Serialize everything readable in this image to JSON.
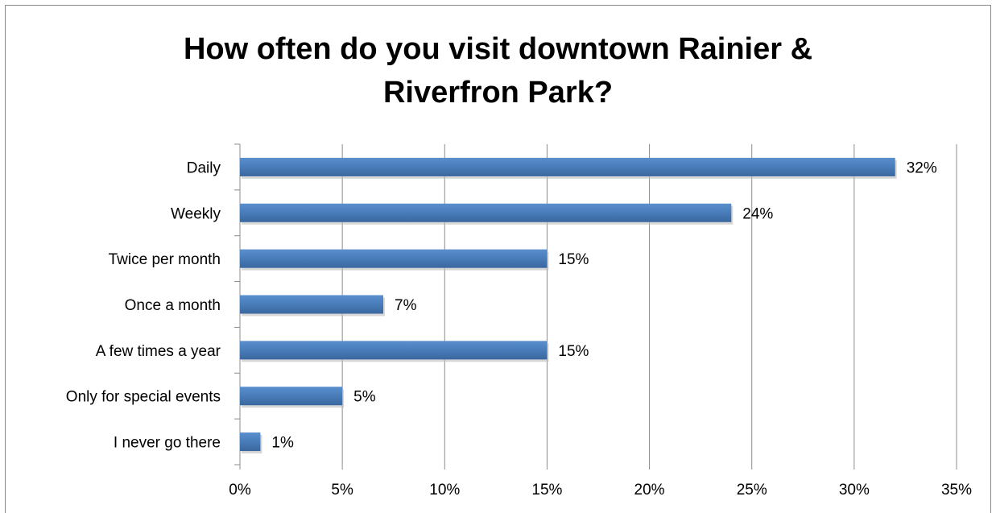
{
  "chart_data": {
    "type": "bar",
    "orientation": "horizontal",
    "title": "How often do you visit downtown Rainier & Riverfron Park?",
    "categories": [
      "Daily",
      "Weekly",
      "Twice per month",
      "Once a month",
      "A few times a year",
      "Only for special events",
      "I never go there"
    ],
    "values": [
      32,
      24,
      15,
      7,
      15,
      5,
      1
    ],
    "data_labels": [
      "32%",
      "24%",
      "15%",
      "7%",
      "15%",
      "5%",
      "1%"
    ],
    "xlim": [
      0,
      35
    ],
    "x_ticks": [
      0,
      5,
      10,
      15,
      20,
      25,
      30,
      35
    ],
    "x_tick_labels": [
      "0%",
      "5%",
      "10%",
      "15%",
      "20%",
      "25%",
      "30%",
      "35%"
    ],
    "grid": "vertical",
    "legend": "none",
    "bar_color": "#4a7ebb"
  }
}
